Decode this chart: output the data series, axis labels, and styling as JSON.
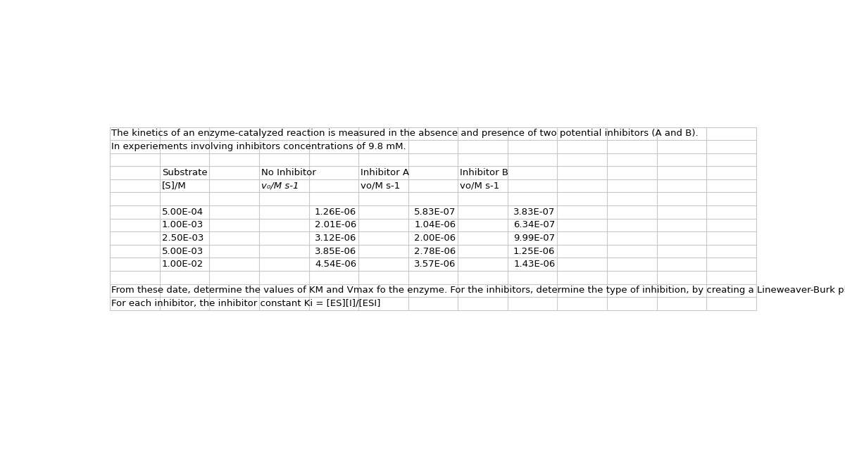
{
  "title_line1": "The kinetics of an enzyme-catalyzed reaction is measured in the absence and presence of two potential inhibitors (A and B).",
  "title_line2": "In experiements involving inhibitors concentrations of 9.8 mM.",
  "header1": [
    "Substrate",
    "No Inhibitor",
    "Inhibitor A",
    "Inhibitor B"
  ],
  "header2": [
    "[S]/M",
    "v₀/M s-1",
    "vo/M s-1",
    "vo/M s-1"
  ],
  "data_rows": [
    [
      "5.00E-04",
      "1.26E-06",
      "5.83E-07",
      "3.83E-07"
    ],
    [
      "1.00E-03",
      "2.01E-06",
      "1.04E-06",
      "6.34E-07"
    ],
    [
      "2.50E-03",
      "3.12E-06",
      "2.00E-06",
      "9.99E-07"
    ],
    [
      "5.00E-03",
      "3.85E-06",
      "2.78E-06",
      "1.25E-06"
    ],
    [
      "1.00E-02",
      "4.54E-06",
      "3.57E-06",
      "1.43E-06"
    ]
  ],
  "footer_line1": "From these date, determine the values of KM and Vmax fo the enzyme. For the inhibitors, determine the type of inhibition, by creating a Lineweaver-Burk plot comparing all three experiments.",
  "footer_line2": "For each inhibitor, the inhibitor constant Ki = [ES][I]/[ESI]",
  "num_cols": 13,
  "num_rows": 14,
  "background_color": "#ffffff",
  "grid_color": "#c8c8c8",
  "text_color": "#000000",
  "font_size": 9.5,
  "v0_subscript": "v₀/M s-1"
}
